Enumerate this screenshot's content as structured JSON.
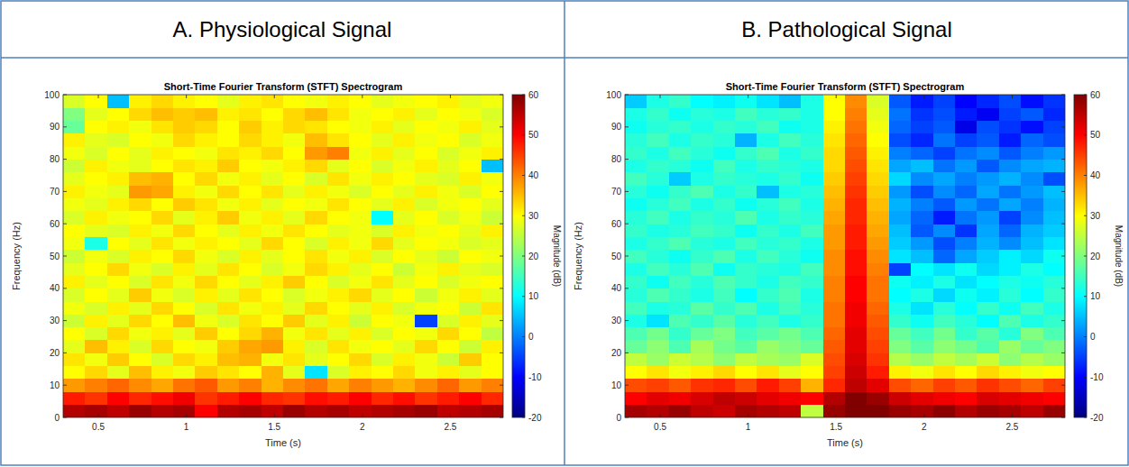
{
  "chart_data": [
    {
      "type": "heatmap",
      "heading": "A. Physiological Signal",
      "title": "Short-Time Fourier Transform (STFT) Spectrogram",
      "xlabel": "Time (s)",
      "ylabel": "Frequency (Hz)",
      "x": [
        0.3625,
        0.4875,
        0.6125,
        0.7375,
        0.8625,
        0.9875,
        1.1125,
        1.2375,
        1.3625,
        1.4875,
        1.6125,
        1.7375,
        1.8625,
        1.9875,
        2.1125,
        2.2375,
        2.3625,
        2.4875,
        2.6125,
        2.7375
      ],
      "y": [
        2,
        6,
        10,
        14,
        18,
        22,
        26,
        30,
        34,
        38,
        42,
        46,
        50,
        54,
        58,
        62,
        66,
        70,
        74,
        78,
        82,
        86,
        90,
        94,
        98
      ],
      "values": [
        [
          56,
          57,
          55,
          58,
          56,
          57,
          50,
          56,
          57,
          55,
          58,
          56,
          57,
          55,
          56,
          57,
          58,
          55,
          56,
          57
        ],
        [
          48,
          46,
          50,
          47,
          49,
          51,
          46,
          48,
          50,
          47,
          46,
          49,
          48,
          50,
          47,
          49,
          46,
          48,
          50,
          47
        ],
        [
          38,
          40,
          42,
          39,
          37,
          41,
          43,
          38,
          40,
          36,
          39,
          41,
          37,
          40,
          38,
          36,
          39,
          42,
          38,
          40
        ],
        [
          30,
          33,
          28,
          35,
          31,
          29,
          34,
          32,
          30,
          36,
          28,
          8,
          27,
          31,
          30,
          33,
          29,
          31,
          28,
          30
        ],
        [
          32,
          29,
          34,
          30,
          27,
          33,
          31,
          35,
          36,
          29,
          32,
          28,
          30,
          33,
          27,
          31,
          29,
          26,
          34,
          30
        ],
        [
          28,
          35,
          31,
          27,
          33,
          30,
          29,
          34,
          37,
          38,
          31,
          27,
          32,
          29,
          30,
          28,
          33,
          30,
          26,
          31
        ],
        [
          30,
          27,
          33,
          29,
          31,
          28,
          34,
          30,
          33,
          36,
          29,
          32,
          28,
          31,
          27,
          30,
          29,
          33,
          30,
          25
        ],
        [
          26,
          31,
          28,
          33,
          30,
          35,
          29,
          27,
          32,
          30,
          34,
          28,
          31,
          26,
          30,
          29,
          -5,
          27,
          31,
          28
        ],
        [
          29,
          27,
          31,
          28,
          33,
          30,
          27,
          32,
          29,
          31,
          28,
          33,
          30,
          28,
          31,
          27,
          29,
          30,
          26,
          32
        ],
        [
          27,
          30,
          28,
          34,
          29,
          27,
          31,
          28,
          32,
          30,
          27,
          29,
          31,
          33,
          28,
          30,
          26,
          29,
          31,
          28
        ],
        [
          31,
          28,
          30,
          27,
          32,
          29,
          33,
          30,
          28,
          31,
          34,
          30,
          27,
          29,
          32,
          28,
          30,
          27,
          29,
          30
        ],
        [
          28,
          30,
          33,
          29,
          27,
          31,
          28,
          32,
          30,
          27,
          29,
          33,
          31,
          28,
          30,
          26,
          29,
          31,
          28,
          27
        ],
        [
          26,
          29,
          27,
          31,
          30,
          33,
          29,
          27,
          31,
          28,
          30,
          32,
          29,
          31,
          27,
          30,
          28,
          26,
          30,
          29
        ],
        [
          29,
          12,
          30,
          28,
          32,
          29,
          31,
          30,
          28,
          33,
          30,
          27,
          31,
          29,
          33,
          28,
          30,
          29,
          27,
          28
        ],
        [
          30,
          28,
          27,
          31,
          29,
          33,
          30,
          28,
          31,
          29,
          32,
          30,
          28,
          29,
          27,
          31,
          29,
          30,
          28,
          31
        ],
        [
          27,
          31,
          29,
          30,
          33,
          28,
          31,
          34,
          29,
          31,
          28,
          33,
          30,
          29,
          10,
          28,
          30,
          27,
          29,
          26
        ],
        [
          29,
          28,
          31,
          33,
          30,
          34,
          32,
          29,
          31,
          28,
          30,
          29,
          32,
          30,
          28,
          31,
          27,
          29,
          30,
          28
        ],
        [
          31,
          29,
          28,
          38,
          37,
          31,
          29,
          33,
          30,
          32,
          28,
          31,
          29,
          27,
          30,
          28,
          31,
          29,
          27,
          30
        ],
        [
          28,
          30,
          31,
          35,
          36,
          30,
          33,
          29,
          31,
          28,
          30,
          27,
          32,
          29,
          31,
          30,
          28,
          27,
          31,
          29
        ],
        [
          26,
          31,
          29,
          28,
          30,
          32,
          31,
          34,
          30,
          29,
          31,
          33,
          28,
          30,
          27,
          29,
          31,
          28,
          30,
          5
        ],
        [
          29,
          27,
          30,
          28,
          31,
          30,
          29,
          32,
          31,
          33,
          30,
          38,
          40,
          29,
          31,
          28,
          30,
          27,
          29,
          31
        ],
        [
          31,
          28,
          27,
          30,
          29,
          33,
          31,
          30,
          33,
          31,
          29,
          35,
          32,
          30,
          28,
          31,
          29,
          30,
          27,
          29
        ],
        [
          18,
          30,
          31,
          29,
          32,
          34,
          33,
          30,
          34,
          31,
          33,
          32,
          30,
          29,
          31,
          28,
          30,
          29,
          31,
          28
        ],
        [
          20,
          28,
          30,
          33,
          35,
          34,
          35,
          31,
          32,
          30,
          33,
          35,
          32,
          29,
          30,
          31,
          28,
          30,
          29,
          27
        ],
        [
          27,
          30,
          5,
          31,
          33,
          31,
          30,
          28,
          31,
          32,
          30,
          29,
          31,
          30,
          28,
          29,
          30,
          31,
          28,
          29
        ]
      ],
      "xlim": [
        0.3,
        2.8
      ],
      "xticks": [
        0.5,
        1,
        1.5,
        2,
        2.5
      ],
      "ylim": [
        0,
        100
      ],
      "yticks": [
        0,
        10,
        20,
        30,
        40,
        50,
        60,
        70,
        80,
        90,
        100
      ],
      "color_range": [
        -20,
        60
      ],
      "color_ticks": [
        -20,
        -10,
        0,
        10,
        20,
        30,
        40,
        50,
        60
      ],
      "color_label": "Magnitude (dB)"
    },
    {
      "type": "heatmap",
      "heading": "B. Pathological Signal",
      "title": "Short-Time Fourier Transform (STFT) Spectrogram",
      "xlabel": "Time (s)",
      "ylabel": "Frequency (Hz)",
      "x": [
        0.3625,
        0.4875,
        0.6125,
        0.7375,
        0.8625,
        0.9875,
        1.1125,
        1.2375,
        1.3625,
        1.4875,
        1.6125,
        1.7375,
        1.8625,
        1.9875,
        2.1125,
        2.2375,
        2.3625,
        2.4875,
        2.6125,
        2.7375
      ],
      "y": [
        2,
        6,
        10,
        14,
        18,
        22,
        26,
        30,
        34,
        38,
        42,
        46,
        50,
        54,
        58,
        62,
        66,
        70,
        74,
        78,
        82,
        86,
        90,
        94,
        98
      ],
      "values": [
        [
          57,
          56,
          58,
          55,
          54,
          57,
          56,
          55,
          25,
          58,
          60,
          60,
          58,
          57,
          59,
          56,
          58,
          57,
          55,
          58
        ],
        [
          50,
          52,
          51,
          53,
          55,
          54,
          52,
          51,
          50,
          56,
          60,
          58,
          54,
          52,
          51,
          50,
          53,
          52,
          51,
          50
        ],
        [
          44,
          45,
          43,
          46,
          47,
          44,
          48,
          45,
          36,
          47,
          55,
          52,
          44,
          42,
          45,
          43,
          46,
          44,
          42,
          45
        ],
        [
          30,
          32,
          29,
          31,
          33,
          30,
          32,
          28,
          30,
          45,
          54,
          48,
          31,
          29,
          32,
          30,
          33,
          31,
          29,
          30
        ],
        [
          25,
          22,
          26,
          24,
          21,
          25,
          23,
          22,
          27,
          44,
          53,
          46,
          24,
          22,
          25,
          23,
          26,
          21,
          24,
          22
        ],
        [
          18,
          21,
          16,
          23,
          19,
          17,
          22,
          20,
          18,
          43,
          52,
          45,
          20,
          17,
          21,
          19,
          16,
          22,
          18,
          20
        ],
        [
          16,
          19,
          14,
          18,
          20,
          15,
          17,
          19,
          16,
          42,
          52,
          44,
          18,
          15,
          19,
          14,
          17,
          13,
          20,
          16
        ],
        [
          12,
          8,
          16,
          14,
          17,
          13,
          15,
          12,
          14,
          41,
          51,
          43,
          14,
          11,
          15,
          13,
          10,
          16,
          12,
          14
        ],
        [
          15,
          12,
          13,
          17,
          14,
          16,
          12,
          15,
          13,
          41,
          51,
          42,
          12,
          8,
          13,
          10,
          14,
          11,
          15,
          12
        ],
        [
          13,
          16,
          14,
          12,
          15,
          10,
          14,
          16,
          12,
          40,
          50,
          41,
          10,
          12,
          7,
          11,
          9,
          13,
          10,
          14
        ],
        [
          14,
          11,
          15,
          13,
          16,
          14,
          12,
          15,
          14,
          40,
          50,
          41,
          11,
          9,
          12,
          8,
          10,
          12,
          11,
          13
        ],
        [
          12,
          15,
          13,
          16,
          11,
          14,
          13,
          12,
          15,
          39,
          49,
          40,
          -5,
          10,
          8,
          11,
          7,
          9,
          12,
          10
        ],
        [
          15,
          13,
          11,
          14,
          16,
          12,
          15,
          13,
          11,
          39,
          49,
          39,
          8,
          5,
          -2,
          3,
          6,
          9,
          7,
          11
        ],
        [
          12,
          14,
          16,
          13,
          12,
          15,
          13,
          14,
          12,
          38,
          48,
          38,
          6,
          2,
          -4,
          0,
          4,
          1,
          5,
          8
        ],
        [
          14,
          12,
          13,
          15,
          14,
          11,
          14,
          12,
          15,
          38,
          48,
          37,
          5,
          -3,
          1,
          -6,
          3,
          -2,
          4,
          6
        ],
        [
          13,
          15,
          12,
          14,
          13,
          16,
          12,
          14,
          13,
          37,
          47,
          36,
          3,
          -2,
          -8,
          -1,
          2,
          -5,
          1,
          5
        ],
        [
          11,
          13,
          15,
          12,
          14,
          11,
          13,
          15,
          12,
          36,
          47,
          35,
          4,
          0,
          -3,
          2,
          -1,
          3,
          0,
          4
        ],
        [
          13,
          11,
          14,
          16,
          12,
          14,
          5,
          12,
          13,
          35,
          46,
          34,
          2,
          -4,
          1,
          -2,
          3,
          -1,
          2,
          5
        ],
        [
          15,
          13,
          6,
          12,
          14,
          13,
          12,
          14,
          11,
          34,
          45,
          33,
          7,
          1,
          3,
          0,
          2,
          4,
          1,
          -4
        ],
        [
          12,
          14,
          13,
          11,
          15,
          12,
          14,
          13,
          12,
          33,
          44,
          32,
          3,
          5,
          -1,
          2,
          -3,
          1,
          3,
          4
        ],
        [
          14,
          12,
          15,
          13,
          11,
          14,
          16,
          12,
          14,
          33,
          43,
          31,
          0,
          -2,
          -5,
          -1,
          1,
          -3,
          0,
          2
        ],
        [
          13,
          15,
          12,
          14,
          13,
          4,
          12,
          15,
          13,
          32,
          42,
          30,
          -4,
          -7,
          -1,
          -5,
          -3,
          -8,
          -2,
          -4
        ],
        [
          11,
          13,
          14,
          12,
          14,
          13,
          15,
          11,
          12,
          31,
          41,
          29,
          -2,
          -5,
          -3,
          -12,
          -4,
          -6,
          -9,
          -5
        ],
        [
          12,
          14,
          11,
          13,
          12,
          15,
          13,
          14,
          12,
          30,
          40,
          28,
          -1,
          -6,
          -4,
          -8,
          -11,
          -5,
          -3,
          -7
        ],
        [
          6,
          12,
          14,
          10,
          9,
          11,
          8,
          5,
          12,
          30,
          39,
          27,
          -3,
          -8,
          -5,
          -10,
          -7,
          -4,
          -9,
          -6
        ]
      ],
      "xlim": [
        0.3,
        2.8
      ],
      "xticks": [
        0.5,
        1,
        1.5,
        2,
        2.5
      ],
      "ylim": [
        0,
        100
      ],
      "yticks": [
        0,
        10,
        20,
        30,
        40,
        50,
        60,
        70,
        80,
        90,
        100
      ],
      "color_range": [
        -20,
        60
      ],
      "color_ticks": [
        -20,
        -10,
        0,
        10,
        20,
        30,
        40,
        50,
        60
      ],
      "color_label": "Magnitude (dB)"
    }
  ]
}
